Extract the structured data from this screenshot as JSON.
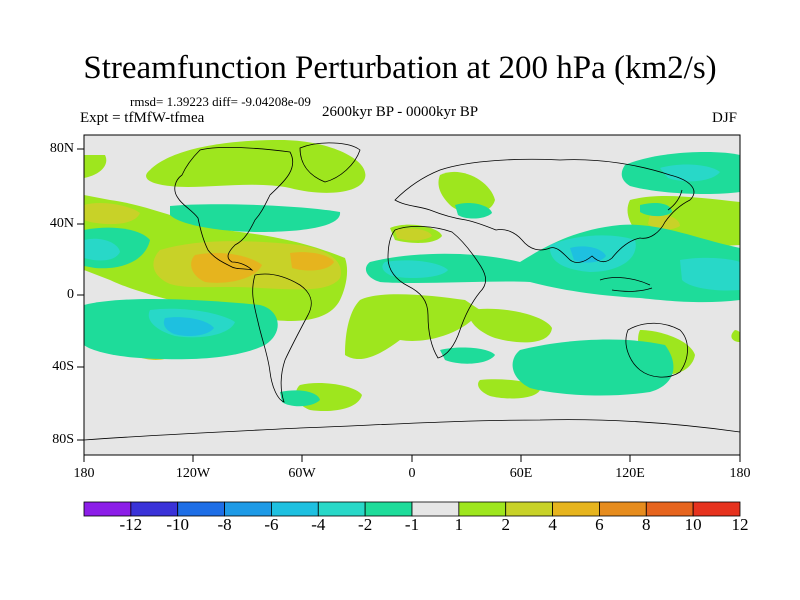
{
  "title": "Streamfunction Perturbation at 200 hPa (km2/s)",
  "stats": "rmsd= 1.39223 diff= -9.04208e-09",
  "experiment": "Expt = tfMfW-tfmea",
  "period": "2600kyr BP - 0000kyr BP",
  "season": "DJF",
  "chart_data": {
    "type": "heatmap",
    "subtype": "global filled contour map",
    "variable": "Streamfunction Perturbation",
    "level": "200 hPa",
    "units": "km2/s",
    "xlim": [
      -180,
      180
    ],
    "ylim": [
      -90,
      90
    ],
    "x_ticks": [
      "180",
      "120W",
      "60W",
      "0",
      "60E",
      "120E",
      "180"
    ],
    "y_ticks": [
      "80N",
      "40N",
      "0",
      "40S",
      "80S"
    ],
    "colorbar": {
      "labels": [
        "-12",
        "-10",
        "-8",
        "-6",
        "-4",
        "-2",
        "-1",
        "1",
        "2",
        "4",
        "6",
        "8",
        "10",
        "12"
      ],
      "colors": [
        "#8c1ee8",
        "#3a32d8",
        "#1e6ee6",
        "#1e9ae6",
        "#1ec0e0",
        "#28d8c8",
        "#1edc9a",
        "#e6e6e6",
        "#9ee61e",
        "#c8d228",
        "#e6b41e",
        "#e68c1e",
        "#e6641e",
        "#e6321e"
      ]
    }
  }
}
